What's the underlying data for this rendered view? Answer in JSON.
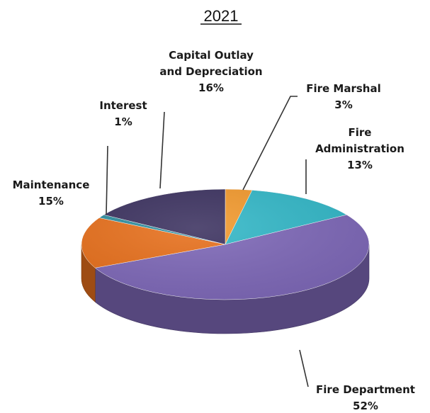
{
  "chart_data": {
    "type": "pie",
    "title": "2021",
    "slices": [
      {
        "name": "Fire Marshal",
        "lines": [
          "Fire Marshal",
          "3%"
        ],
        "value": 3,
        "color": "#f39a2e"
      },
      {
        "name": "Fire Administration",
        "lines": [
          "Fire",
          "Administration",
          "13%"
        ],
        "value": 13,
        "color": "#33b8c8"
      },
      {
        "name": "Fire Department",
        "lines": [
          "Fire Department",
          "52%"
        ],
        "value": 52,
        "color": "#7e68b8"
      },
      {
        "name": "Maintenance",
        "lines": [
          "Maintenance",
          "15%"
        ],
        "value": 15,
        "color": "#e8701c"
      },
      {
        "name": "Interest",
        "lines": [
          "Interest",
          "1%"
        ],
        "value": 1,
        "color": "#2f8fa0"
      },
      {
        "name": "Capital Outlay and Depreciation",
        "lines": [
          "Capital Outlay",
          "and Depreciation",
          "16%"
        ],
        "value": 16,
        "color": "#3c3260"
      }
    ],
    "legend": "none",
    "style": "3d-tilted"
  }
}
